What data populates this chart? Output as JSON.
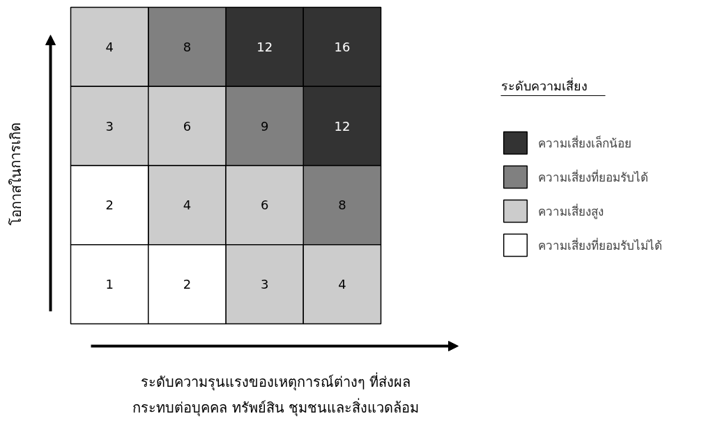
{
  "chart_data": {
    "type": "heatmap",
    "categories": [
      null,
      null,
      null,
      null
    ],
    "y_categories": [
      null,
      null,
      null,
      null
    ],
    "cells": [
      [
        4,
        8,
        12,
        16
      ],
      [
        3,
        6,
        9,
        12
      ],
      [
        2,
        4,
        6,
        8
      ],
      [
        1,
        2,
        3,
        4
      ]
    ],
    "colors": [
      [
        "#cccccc",
        "#808080",
        "#333333",
        "#333333"
      ],
      [
        "#cccccc",
        "#cccccc",
        "#808080",
        "#333333"
      ],
      [
        "#ffffff",
        "#cccccc",
        "#cccccc",
        "#808080"
      ],
      [
        "#ffffff",
        "#ffffff",
        "#cccccc",
        "#cccccc"
      ]
    ],
    "xlabel": "ระดับความรุนแรงของเหตุการณ์ต่างๆ ที่ส่งผล\nกระทบต่อบุคคล ทรัพย์สิน ชุมชนและสิ่งแวดล้อม",
    "ylabel": "โอกาสในการเกิด",
    "legend_title": "ระดับความเสี่ยง",
    "legend": "right",
    "data_labels": true,
    "series": [
      {
        "name": "ความเสี่ยงเล็กน้อย",
        "color": "#333333",
        "values": [
          null,
          null,
          null,
          null
        ]
      },
      {
        "name": "ความเสี่ยงที่ยอมรับได้",
        "color": "#808080",
        "values": [
          null,
          null,
          null,
          null
        ]
      },
      {
        "name": "ความเสี่ยงสูง",
        "color": "#cccccc",
        "values": [
          null,
          null,
          null,
          null
        ]
      },
      {
        "name": "ความเสี่ยงที่ยอมรับไม่ได้",
        "color": "#ffffff",
        "values": [
          null,
          null,
          null,
          null
        ]
      }
    ]
  }
}
